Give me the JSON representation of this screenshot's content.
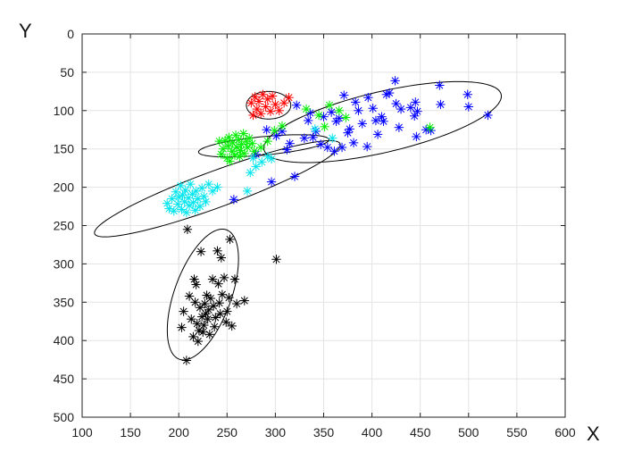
{
  "chart_data": {
    "type": "scatter",
    "title": "",
    "xlabel": "X",
    "ylabel": "Y",
    "xlim": [
      100,
      600
    ],
    "ylim": [
      0,
      500
    ],
    "y_reversed": true,
    "xticks": [
      100,
      150,
      200,
      250,
      300,
      350,
      400,
      450,
      500,
      550,
      600
    ],
    "yticks": [
      0,
      50,
      100,
      150,
      200,
      250,
      300,
      350,
      400,
      450,
      500
    ],
    "grid": true,
    "marker": "asterisk",
    "series": [
      {
        "color": "#0000ff",
        "points": [
          [
            520,
            106
          ],
          [
            500,
            95
          ],
          [
            499,
            79
          ],
          [
            471,
            92
          ],
          [
            470,
            67
          ],
          [
            461,
            126
          ],
          [
            456,
            125
          ],
          [
            447,
            101
          ],
          [
            446,
            134
          ],
          [
            445,
            89
          ],
          [
            444,
            107
          ],
          [
            440,
            96
          ],
          [
            430,
            98
          ],
          [
            428,
            122
          ],
          [
            425,
            91
          ],
          [
            424,
            61
          ],
          [
            418,
            77
          ],
          [
            415,
            79
          ],
          [
            412,
            114
          ],
          [
            410,
            108
          ],
          [
            406,
            131
          ],
          [
            404,
            113
          ],
          [
            401,
            97
          ],
          [
            396,
            83
          ],
          [
            395,
            147
          ],
          [
            390,
            117
          ],
          [
            386,
            100
          ],
          [
            383,
            89
          ],
          [
            381,
            142
          ],
          [
            377,
            124
          ],
          [
            375,
            129
          ],
          [
            371,
            80
          ],
          [
            369,
            148
          ],
          [
            366,
            110
          ],
          [
            363,
            114
          ],
          [
            361,
            153
          ],
          [
            358,
            102
          ],
          [
            354,
            148
          ],
          [
            350,
            108
          ],
          [
            347,
            144
          ],
          [
            342,
            127
          ],
          [
            339,
            135
          ],
          [
            336,
            103
          ],
          [
            334,
            113
          ],
          [
            330,
            136
          ],
          [
            322,
            93
          ],
          [
            320,
            186
          ],
          [
            315,
            143
          ],
          [
            312,
            151
          ],
          [
            307,
            127
          ],
          [
            301,
            133
          ],
          [
            296,
            193
          ],
          [
            291,
            125
          ],
          [
            280,
            157
          ],
          [
            257,
            216
          ]
        ]
      },
      {
        "color": "#ff0000",
        "points": [
          [
            275,
            90
          ],
          [
            277,
            106
          ],
          [
            279,
            82
          ],
          [
            281,
            98
          ],
          [
            283,
            88
          ],
          [
            285,
            104
          ],
          [
            287,
            79
          ],
          [
            290,
            95
          ],
          [
            292,
            85
          ],
          [
            295,
            101
          ],
          [
            297,
            81
          ],
          [
            300,
            92
          ],
          [
            304,
            100
          ],
          [
            309,
            90
          ],
          [
            314,
            83
          ]
        ]
      },
      {
        "color": "#00ee00",
        "points": [
          [
            242,
            140
          ],
          [
            244,
            157
          ],
          [
            246,
            150
          ],
          [
            248,
            139
          ],
          [
            250,
            162
          ],
          [
            251,
            146
          ],
          [
            252,
            135
          ],
          [
            253,
            166
          ],
          [
            255,
            153
          ],
          [
            256,
            142
          ],
          [
            258,
            158
          ],
          [
            259,
            132
          ],
          [
            260,
            148
          ],
          [
            262,
            138
          ],
          [
            263,
            160
          ],
          [
            264,
            152
          ],
          [
            265,
            144
          ],
          [
            267,
            130
          ],
          [
            268,
            156
          ],
          [
            270,
            140
          ],
          [
            271,
            148
          ],
          [
            273,
            136
          ],
          [
            276,
            143
          ],
          [
            278,
            153
          ],
          [
            285,
            148
          ],
          [
            292,
            140
          ],
          [
            299,
            126
          ],
          [
            307,
            120
          ],
          [
            332,
            98
          ],
          [
            345,
            106
          ],
          [
            351,
            121
          ],
          [
            356,
            93
          ],
          [
            366,
            100
          ],
          [
            373,
            109
          ],
          [
            460,
            122
          ]
        ]
      },
      {
        "color": "#00e5ee",
        "points": [
          [
            188,
            221
          ],
          [
            190,
            228
          ],
          [
            193,
            215
          ],
          [
            195,
            231
          ],
          [
            197,
            206
          ],
          [
            199,
            222
          ],
          [
            200,
            213
          ],
          [
            202,
            198
          ],
          [
            203,
            229
          ],
          [
            204,
            210
          ],
          [
            206,
            219
          ],
          [
            207,
            204
          ],
          [
            208,
            233
          ],
          [
            210,
            214
          ],
          [
            211,
            224
          ],
          [
            212,
            196
          ],
          [
            214,
            209
          ],
          [
            215,
            220
          ],
          [
            217,
            230
          ],
          [
            218,
            205
          ],
          [
            220,
            215
          ],
          [
            222,
            225
          ],
          [
            224,
            201
          ],
          [
            226,
            212
          ],
          [
            228,
            219
          ],
          [
            231,
            196
          ],
          [
            235,
            205
          ],
          [
            240,
            200
          ],
          [
            271,
            205
          ],
          [
            274,
            181
          ],
          [
            277,
            162
          ],
          [
            280,
            173
          ],
          [
            286,
            167
          ],
          [
            292,
            160
          ],
          [
            296,
            163
          ],
          [
            341,
            124
          ],
          [
            359,
            136
          ]
        ]
      },
      {
        "color": "#000000",
        "points": [
          [
            203,
            383
          ],
          [
            205,
            362
          ],
          [
            208,
            426
          ],
          [
            209,
            255
          ],
          [
            211,
            342
          ],
          [
            213,
            372
          ],
          [
            215,
            395
          ],
          [
            216,
            320
          ],
          [
            217,
            350
          ],
          [
            218,
            327
          ],
          [
            219,
            378
          ],
          [
            220,
            401
          ],
          [
            221,
            387
          ],
          [
            222,
            357
          ],
          [
            223,
            284
          ],
          [
            224,
            369
          ],
          [
            225,
            389
          ],
          [
            226,
            380
          ],
          [
            227,
            352
          ],
          [
            228,
            365
          ],
          [
            229,
            341
          ],
          [
            230,
            372
          ],
          [
            231,
            360
          ],
          [
            232,
            392
          ],
          [
            233,
            345
          ],
          [
            235,
            320
          ],
          [
            236,
            355
          ],
          [
            237,
            382
          ],
          [
            238,
            370
          ],
          [
            240,
            283
          ],
          [
            241,
            326
          ],
          [
            242,
            351
          ],
          [
            243,
            365
          ],
          [
            244,
            292
          ],
          [
            245,
            340
          ],
          [
            247,
            318
          ],
          [
            249,
            376
          ],
          [
            250,
            362
          ],
          [
            252,
            344
          ],
          [
            253,
            268
          ],
          [
            255,
            381
          ],
          [
            258,
            320
          ],
          [
            260,
            352
          ],
          [
            268,
            348
          ],
          [
            301,
            294
          ]
        ]
      }
    ],
    "ellipses": [
      {
        "color": "#000000",
        "center": [
          225,
          340
        ],
        "rx": 30,
        "ry": 88,
        "angle": 15
      },
      {
        "color": "#000000",
        "center": [
          240,
          202
        ],
        "rx": 140,
        "ry": 23,
        "angle": -25
      },
      {
        "color": "#000000",
        "center": [
          288,
          146
        ],
        "rx": 68,
        "ry": 12,
        "angle": -7
      },
      {
        "color": "#000000",
        "center": [
          411,
          115
        ],
        "rx": 128,
        "ry": 39,
        "angle": -17
      },
      {
        "color": "#000000",
        "center": [
          293,
          93
        ],
        "rx": 23,
        "ry": 18,
        "angle": 0
      }
    ]
  }
}
